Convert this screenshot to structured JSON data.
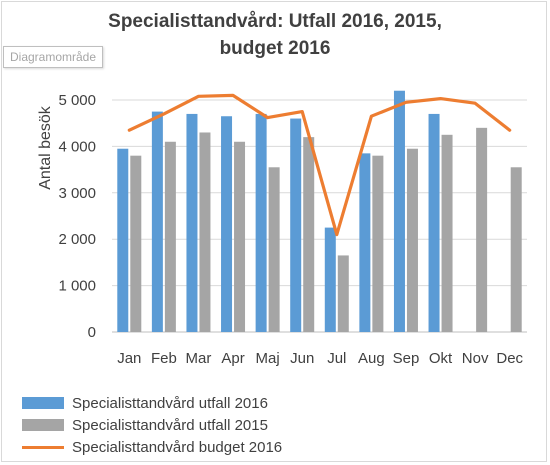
{
  "chart_data": {
    "type": "bar",
    "title": "Specialisttandvård: Utfall 2016, 2015, budget 2016",
    "title_lines": [
      "Specialisttandvård: Utfall 2016, 2015,",
      "budget 2016"
    ],
    "ylabel": "Antal besök",
    "xlabel": "",
    "ylim": [
      0,
      5000
    ],
    "y_ticks": [
      "0",
      "1 000",
      "2 000",
      "3 000",
      "4 000",
      "5 000"
    ],
    "y_tick_values": [
      0,
      1000,
      2000,
      3000,
      4000,
      5000
    ],
    "categories": [
      "Jan",
      "Feb",
      "Mar",
      "Apr",
      "Maj",
      "Jun",
      "Jul",
      "Aug",
      "Sep",
      "Okt",
      "Nov",
      "Dec"
    ],
    "series": [
      {
        "name": "Specialisttandvård utfall 2016",
        "kind": "bar",
        "color": "#5b9bd5",
        "values": [
          3950,
          4750,
          4700,
          4650,
          4700,
          4600,
          2250,
          3850,
          5200,
          4700,
          null,
          null
        ]
      },
      {
        "name": "Specialisttandvård utfall 2015",
        "kind": "bar",
        "color": "#a5a5a5",
        "values": [
          3800,
          4100,
          4300,
          4100,
          3550,
          4200,
          1650,
          3800,
          3950,
          4250,
          4400,
          3550
        ]
      },
      {
        "name": "Specialisttandvård budget 2016",
        "kind": "line",
        "color": "#ed7d31",
        "values": [
          4350,
          4700,
          5080,
          5100,
          4620,
          4750,
          2100,
          4650,
          4950,
          5030,
          4930,
          4350
        ]
      }
    ],
    "grid": true,
    "legend_position": "bottom-left"
  },
  "tooltip": {
    "text": "Diagramområde"
  }
}
